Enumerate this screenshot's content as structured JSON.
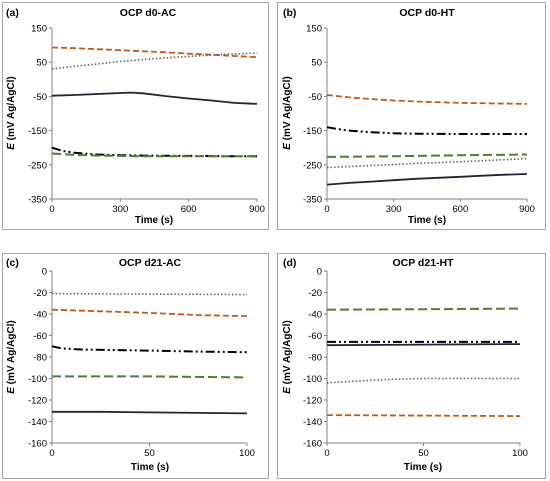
{
  "chart_data": [
    {
      "panel_label": "(a)",
      "title": "OCP d0-AC",
      "type": "line",
      "xlabel": "Time (s)",
      "ylabel_italic": "E",
      "ylabel_rest": " (mV Ag/AgCl)",
      "xlim": [
        0,
        900
      ],
      "ylim": [
        -350,
        150
      ],
      "xticks": [
        0,
        300,
        600,
        900
      ],
      "yticks": [
        150,
        50,
        -50,
        -150,
        -250,
        -350
      ],
      "series": [
        {
          "style": "solid",
          "color": "#1f2533",
          "x": [
            0,
            100,
            200,
            300,
            350,
            400,
            500,
            600,
            700,
            800,
            900
          ],
          "y": [
            -48,
            -46,
            -43,
            -40,
            -39,
            -41,
            -49,
            -56,
            -62,
            -69,
            -72
          ]
        },
        {
          "style": "dash-orange",
          "color": "#c55a11",
          "x": [
            0,
            100,
            200,
            300,
            400,
            500,
            600,
            700,
            800,
            900
          ],
          "y": [
            93,
            91,
            88,
            85,
            82,
            79,
            75,
            72,
            68,
            65
          ]
        },
        {
          "style": "dot",
          "color": "#595959",
          "x": [
            0,
            100,
            200,
            300,
            400,
            500,
            600,
            700,
            800,
            900
          ],
          "y": [
            30,
            38,
            45,
            52,
            58,
            63,
            67,
            71,
            74,
            77
          ]
        },
        {
          "style": "dashdot",
          "color": "#000000",
          "x": [
            0,
            50,
            100,
            200,
            300,
            400,
            600,
            800,
            900
          ],
          "y": [
            -200,
            -210,
            -215,
            -220,
            -222,
            -223,
            -224,
            -225,
            -225
          ]
        },
        {
          "style": "dash-green",
          "color": "#4f7f2a",
          "x": [
            0,
            100,
            200,
            300,
            400,
            600,
            800,
            900
          ],
          "y": [
            -217,
            -221,
            -223,
            -224,
            -225,
            -225,
            -225,
            -225
          ]
        }
      ]
    },
    {
      "panel_label": "(b)",
      "title": "OCP d0-HT",
      "type": "line",
      "xlabel": "Time (s)",
      "ylabel_italic": "E",
      "ylabel_rest": " (mV Ag/AgCl)",
      "xlim": [
        0,
        900
      ],
      "ylim": [
        -350,
        150
      ],
      "xticks": [
        0,
        300,
        600,
        900
      ],
      "yticks": [
        150,
        50,
        -50,
        -150,
        -250,
        -350
      ],
      "series": [
        {
          "style": "dash-orange",
          "color": "#c55a11",
          "x": [
            0,
            100,
            200,
            300,
            400,
            500,
            600,
            700,
            800,
            900
          ],
          "y": [
            -46,
            -53,
            -58,
            -62,
            -65,
            -67,
            -69,
            -70,
            -71,
            -72
          ]
        },
        {
          "style": "dashdot",
          "color": "#000000",
          "x": [
            0,
            50,
            100,
            200,
            300,
            400,
            600,
            800,
            900
          ],
          "y": [
            -140,
            -146,
            -150,
            -155,
            -158,
            -159,
            -160,
            -160,
            -160
          ]
        },
        {
          "style": "dash-green",
          "color": "#4f7f2a",
          "x": [
            0,
            300,
            600,
            900
          ],
          "y": [
            -227,
            -225,
            -222,
            -220
          ]
        },
        {
          "style": "dot",
          "color": "#595959",
          "x": [
            0,
            100,
            200,
            300,
            400,
            500,
            600,
            700,
            800,
            900
          ],
          "y": [
            -258,
            -255,
            -252,
            -249,
            -246,
            -244,
            -241,
            -238,
            -235,
            -232
          ]
        },
        {
          "style": "solid",
          "color": "#1f2533",
          "x": [
            0,
            100,
            200,
            300,
            400,
            500,
            600,
            700,
            800,
            900
          ],
          "y": [
            -308,
            -303,
            -299,
            -295,
            -291,
            -288,
            -285,
            -282,
            -279,
            -277
          ]
        }
      ]
    },
    {
      "panel_label": "(c)",
      "title": "OCP d21-AC",
      "type": "line",
      "xlabel": "Time (s)",
      "ylabel_italic": "E",
      "ylabel_rest": " (mV Ag/AgCl)",
      "xlim": [
        0,
        100
      ],
      "ylim": [
        -160,
        0
      ],
      "xticks": [
        0,
        50,
        100
      ],
      "yticks": [
        0,
        -20,
        -40,
        -60,
        -80,
        -100,
        -120,
        -140,
        -160
      ],
      "series": [
        {
          "style": "dot",
          "color": "#595959",
          "x": [
            0,
            50,
            100
          ],
          "y": [
            -21,
            -21.5,
            -22
          ]
        },
        {
          "style": "dash-orange",
          "color": "#c55a11",
          "x": [
            0,
            25,
            50,
            75,
            100
          ],
          "y": [
            -36,
            -37.5,
            -39,
            -41,
            -42
          ]
        },
        {
          "style": "dashdot",
          "color": "#000000",
          "x": [
            0,
            5,
            15,
            30,
            50,
            75,
            100
          ],
          "y": [
            -70,
            -72,
            -73,
            -73.5,
            -74,
            -75,
            -75.5
          ]
        },
        {
          "style": "dash-green",
          "color": "#4f7f2a",
          "x": [
            0,
            50,
            100
          ],
          "y": [
            -98,
            -98,
            -99
          ]
        },
        {
          "style": "solid",
          "color": "#1f2533",
          "x": [
            0,
            25,
            50,
            75,
            100
          ],
          "y": [
            -131,
            -131,
            -131.5,
            -132,
            -132.5
          ]
        }
      ]
    },
    {
      "panel_label": "(d)",
      "title": "OCP d21-HT",
      "type": "line",
      "xlabel": "Time (s)",
      "ylabel_italic": "E",
      "ylabel_rest": " (mV Ag/AgCl)",
      "xlim": [
        0,
        100
      ],
      "ylim": [
        -160,
        0
      ],
      "xticks": [
        0,
        50,
        100
      ],
      "yticks": [
        0,
        -20,
        -40,
        -60,
        -80,
        -100,
        -120,
        -140,
        -160
      ],
      "series": [
        {
          "style": "dash-green",
          "color": "#4f7f2a",
          "x": [
            0,
            50,
            100
          ],
          "y": [
            -36,
            -35.5,
            -35
          ]
        },
        {
          "style": "dashdot",
          "color": "#000000",
          "x": [
            0,
            50,
            100
          ],
          "y": [
            -66,
            -66,
            -66
          ]
        },
        {
          "style": "solid",
          "color": "#1f2533",
          "x": [
            0,
            50,
            100
          ],
          "y": [
            -69,
            -68.5,
            -68
          ]
        },
        {
          "style": "dot",
          "color": "#595959",
          "x": [
            0,
            10,
            20,
            30,
            40,
            50,
            60,
            80,
            100
          ],
          "y": [
            -104,
            -103,
            -102,
            -101,
            -100.5,
            -100,
            -100,
            -100,
            -100
          ]
        },
        {
          "style": "dash-orange",
          "color": "#c55a11",
          "x": [
            0,
            50,
            100
          ],
          "y": [
            -134,
            -134.5,
            -135
          ]
        }
      ]
    }
  ]
}
